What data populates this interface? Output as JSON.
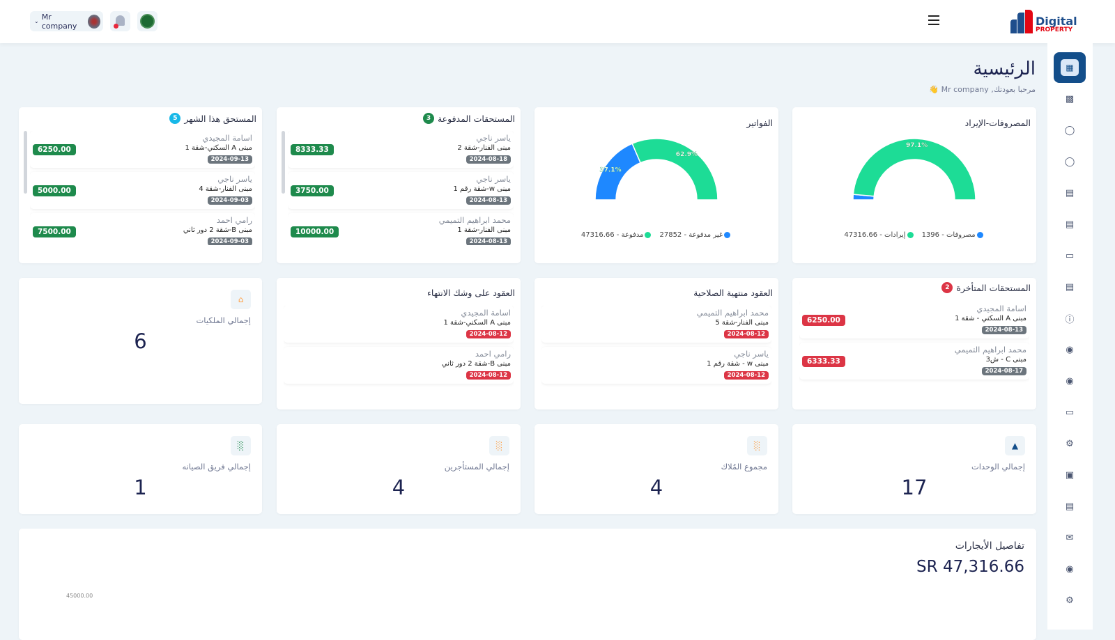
{
  "header": {
    "user_name": "Mr company",
    "logo_line1": "Digital",
    "logo_line2": "PROPERTY"
  },
  "page": {
    "title": "الرئيسية",
    "welcome": "مرحبا بعودتك, Mr company"
  },
  "sidebar": {
    "items": [
      "dashboard-icon",
      "building-icon",
      "user-icon",
      "user-outline-icon",
      "document-icon",
      "document-icon",
      "wallet-icon",
      "list-icon",
      "info-icon",
      "user-circle-icon",
      "user-circle-icon",
      "folder-chart-icon",
      "settings-icon",
      "monitor-icon",
      "document-icon",
      "mail-icon",
      "user-circle-icon",
      "settings-circle-icon"
    ]
  },
  "colors": {
    "primary": "#134e8a",
    "green": "#1e8a4c",
    "red": "#dc3545",
    "gauge_green": "#2fe3a0",
    "gauge_blue": "#2d8cf0",
    "accent_orange": "#ff9f43"
  },
  "revenue_gauge": {
    "title": "المصروفات-الإيراد",
    "percent_label": "97.1%",
    "series": [
      {
        "label": "مصروفات - 1396",
        "value": 1396,
        "color": "#1e88ff"
      },
      {
        "label": "إيرادات - 47316.66",
        "value": 47316.66,
        "color": "#1ddc96"
      }
    ]
  },
  "invoices_gauge": {
    "title": "الفواتير",
    "labels": [
      "37.1%",
      "62.9%"
    ],
    "series": [
      {
        "label": "غير مدفوعة - 27852",
        "value": 27852,
        "color": "#1e88ff"
      },
      {
        "label": "مدفوعة - 47316.66",
        "value": 47316.66,
        "color": "#1ddc96"
      }
    ]
  },
  "paid_dues": {
    "title": "المستحقات المدفوعة",
    "count": "3",
    "items": [
      {
        "name": "ياسر ناجي",
        "unit": "مبنى الفنار-شقة 2",
        "date": "2024-08-18",
        "amount": "8333.33"
      },
      {
        "name": "ياسر ناجي",
        "unit": "مبنى w-شقة رقم 1",
        "date": "2024-08-13",
        "amount": "3750.00"
      },
      {
        "name": "محمد ابراهيم التميمي",
        "unit": "مبنى الفنار-شقة 1",
        "date": "2024-08-13",
        "amount": "10000.00"
      }
    ]
  },
  "due_this_month": {
    "title": "المستحق هذا الشهر",
    "count": "5",
    "items": [
      {
        "name": "اسامة المجيدي",
        "unit": "مبنى A السكني-شقة 1",
        "date": "2024-09-13",
        "amount": "6250.00"
      },
      {
        "name": "ياسر ناجي",
        "unit": "مبنى الفنار-شقة 4",
        "date": "2024-09-03",
        "amount": "5000.00"
      },
      {
        "name": "رامي احمد",
        "unit": "مبنى B-شقة 2 دور ثاني",
        "date": "2024-09-03",
        "amount": "7500.00"
      }
    ]
  },
  "overdue": {
    "title": "المستحقات المتأخرة",
    "count": "2",
    "items": [
      {
        "name": "اسامة المجيدي",
        "unit": "مبنى A السكني - شقة 1",
        "date": "2024-08-13",
        "amount": "6250.00"
      },
      {
        "name": "محمد ابراهيم التميمي",
        "unit": "مبنى C - ش3",
        "date": "2024-08-17",
        "amount": "6333.33"
      }
    ]
  },
  "expired_contracts": {
    "title": "العقود منتهية الصلاحية",
    "items": [
      {
        "name": "محمد ابراهيم التميمي",
        "unit": "مبنى الفنار-شقة 5",
        "date": "2024-08-12"
      },
      {
        "name": "ياسر ناجي",
        "unit": "مبنى w - شقة رقم 1",
        "date": "2024-08-12"
      }
    ]
  },
  "expiring_contracts": {
    "title": "العقود على وشك الانتهاء",
    "items": [
      {
        "name": "اسامة المجيدي",
        "unit": "مبنى A السكني-شقة 1",
        "date": "2024-08-12"
      },
      {
        "name": "رامي احمد",
        "unit": "مبنى B-شقة 2 دور ثاني",
        "date": "2024-08-12"
      }
    ]
  },
  "stats": {
    "properties": {
      "label": "إجمالي الملكيات",
      "value": "6",
      "icon": "home-icon"
    },
    "units": {
      "label": "إجمالي الوحدات",
      "value": "17",
      "icon": "building-icon"
    },
    "owners": {
      "label": "مجموع المُلاك",
      "value": "4",
      "icon": "bar-chart-icon"
    },
    "tenants": {
      "label": "إجمالي المستأجرين",
      "value": "4",
      "icon": "bar-chart-icon"
    },
    "maintenance": {
      "label": "إجمالي فريق الصيانه",
      "value": "1",
      "icon": "bar-chart-icon"
    }
  },
  "rent_details": {
    "title": "تفاصيل الأيجارات",
    "total": "SR 47,316.66",
    "y_tick": "45000.00"
  }
}
